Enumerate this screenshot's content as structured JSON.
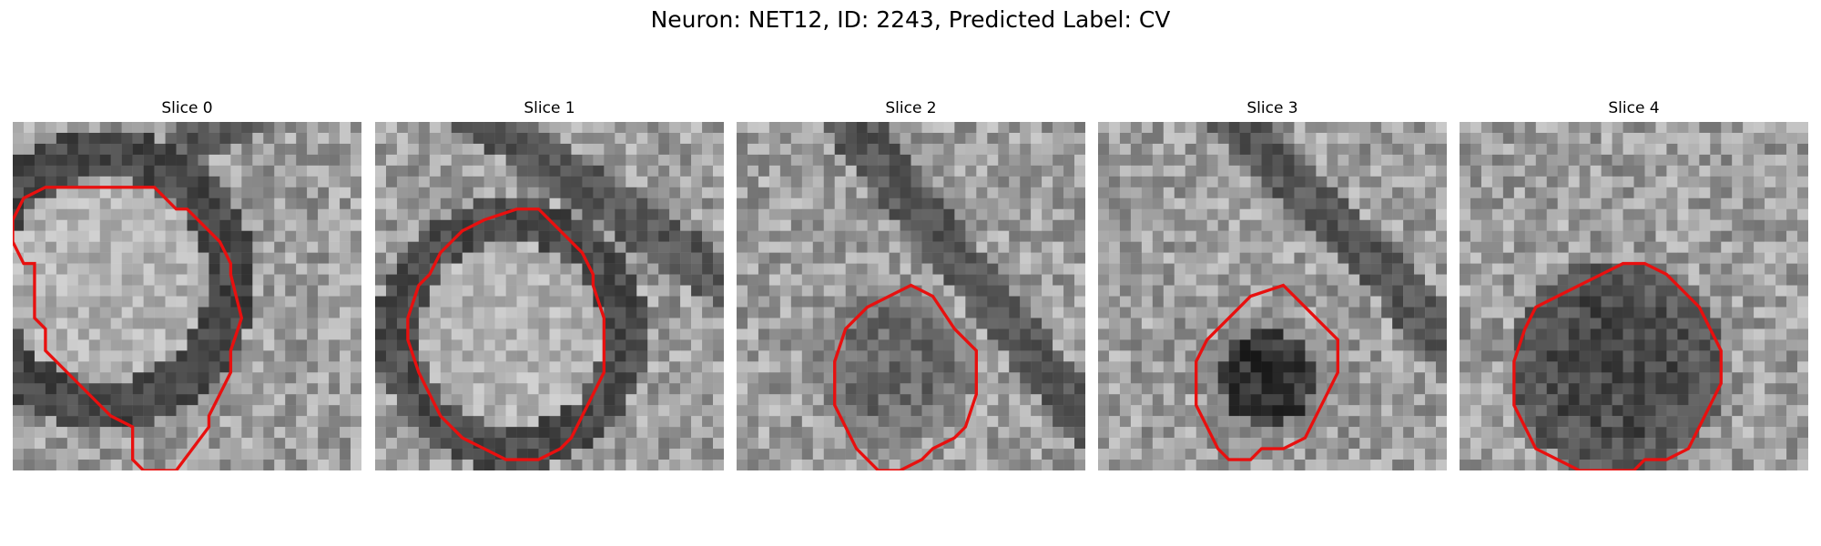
{
  "figure": {
    "title": "Neuron: NET12, ID: 2243, Predicted Label: CV"
  },
  "panels": [
    {
      "title": "Slice 0",
      "outline": [
        [
          7,
          6
        ],
        [
          13,
          6
        ],
        [
          15,
          8
        ],
        [
          16,
          8
        ],
        [
          19,
          11
        ],
        [
          20,
          13
        ],
        [
          20,
          14
        ],
        [
          21,
          18
        ],
        [
          20,
          21
        ],
        [
          20,
          23
        ],
        [
          19,
          25
        ],
        [
          18,
          27
        ],
        [
          18,
          28
        ],
        [
          15,
          32
        ],
        [
          12,
          32
        ],
        [
          11,
          31
        ],
        [
          11,
          28
        ],
        [
          9,
          27
        ],
        [
          6,
          24
        ],
        [
          3,
          21
        ],
        [
          3,
          19
        ],
        [
          2,
          18
        ],
        [
          2,
          13
        ],
        [
          1,
          13
        ],
        [
          0,
          11
        ],
        [
          0,
          9
        ],
        [
          1,
          7
        ],
        [
          3,
          6
        ],
        [
          4,
          6
        ]
      ]
    },
    {
      "title": "Slice 1",
      "outline": [
        [
          13,
          8
        ],
        [
          15,
          8
        ],
        [
          17,
          10
        ],
        [
          19,
          12
        ],
        [
          20,
          14
        ],
        [
          20,
          15
        ],
        [
          21,
          18
        ],
        [
          21,
          21
        ],
        [
          21,
          23
        ],
        [
          20,
          25
        ],
        [
          19,
          27
        ],
        [
          18,
          29
        ],
        [
          17,
          30
        ],
        [
          15,
          31
        ],
        [
          12,
          31
        ],
        [
          10,
          30
        ],
        [
          8,
          29
        ],
        [
          6,
          27
        ],
        [
          5,
          25
        ],
        [
          4,
          23
        ],
        [
          3,
          20
        ],
        [
          3,
          18
        ],
        [
          4,
          15
        ],
        [
          5,
          14
        ],
        [
          6,
          12
        ],
        [
          8,
          10
        ],
        [
          10,
          9
        ]
      ]
    },
    {
      "title": "Slice 2",
      "outline": [
        [
          16,
          15
        ],
        [
          18,
          16
        ],
        [
          20,
          19
        ],
        [
          22,
          21
        ],
        [
          22,
          23
        ],
        [
          22,
          25
        ],
        [
          21,
          28
        ],
        [
          20,
          29
        ],
        [
          18,
          30
        ],
        [
          17,
          31
        ],
        [
          15,
          32
        ],
        [
          13,
          32
        ],
        [
          12,
          31
        ],
        [
          11,
          30
        ],
        [
          10,
          28
        ],
        [
          9,
          26
        ],
        [
          9,
          24
        ],
        [
          9,
          22
        ],
        [
          10,
          19
        ],
        [
          12,
          17
        ],
        [
          14,
          16
        ]
      ]
    },
    {
      "title": "Slice 3",
      "outline": [
        [
          17,
          15
        ],
        [
          19,
          17
        ],
        [
          21,
          19
        ],
        [
          22,
          20
        ],
        [
          22,
          23
        ],
        [
          21,
          25
        ],
        [
          20,
          27
        ],
        [
          19,
          29
        ],
        [
          17,
          30
        ],
        [
          15,
          30
        ],
        [
          14,
          31
        ],
        [
          12,
          31
        ],
        [
          11,
          30
        ],
        [
          10,
          28
        ],
        [
          9,
          26
        ],
        [
          9,
          24
        ],
        [
          9,
          22
        ],
        [
          10,
          20
        ],
        [
          12,
          18
        ],
        [
          14,
          16
        ]
      ]
    },
    {
      "title": "Slice 4",
      "outline": [
        [
          17,
          13
        ],
        [
          19,
          14
        ],
        [
          21,
          16
        ],
        [
          22,
          17
        ],
        [
          23,
          19
        ],
        [
          24,
          21
        ],
        [
          24,
          24
        ],
        [
          23,
          26
        ],
        [
          22,
          28
        ],
        [
          21,
          30
        ],
        [
          19,
          31
        ],
        [
          17,
          31
        ],
        [
          16,
          32
        ],
        [
          14,
          32
        ],
        [
          11,
          32
        ],
        [
          9,
          31
        ],
        [
          7,
          30
        ],
        [
          6,
          28
        ],
        [
          5,
          26
        ],
        [
          5,
          24
        ],
        [
          5,
          22
        ],
        [
          6,
          19
        ],
        [
          7,
          17
        ],
        [
          9,
          16
        ],
        [
          11,
          15
        ],
        [
          13,
          14
        ],
        [
          15,
          13
        ]
      ]
    }
  ]
}
